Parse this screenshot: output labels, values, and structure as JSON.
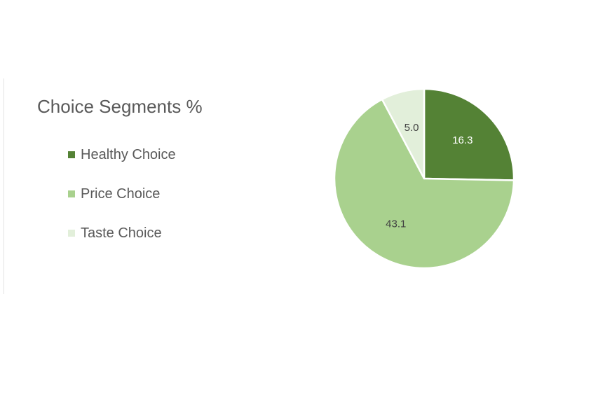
{
  "chart_data": {
    "type": "pie",
    "title": "Choice Segments %",
    "categories": [
      "Healthy Choice",
      "Price Choice",
      "Taste Choice"
    ],
    "values": [
      16.3,
      43.1,
      5.0
    ],
    "value_labels": [
      "16.3",
      "43.1",
      "5.0"
    ],
    "colors": [
      "#548235",
      "#a9d18e",
      "#e2efda"
    ],
    "label_colors": [
      "#ffffff",
      "#404040",
      "#404040"
    ],
    "start_angle_deg": 0,
    "direction": "clockwise",
    "legend_position": "left"
  }
}
